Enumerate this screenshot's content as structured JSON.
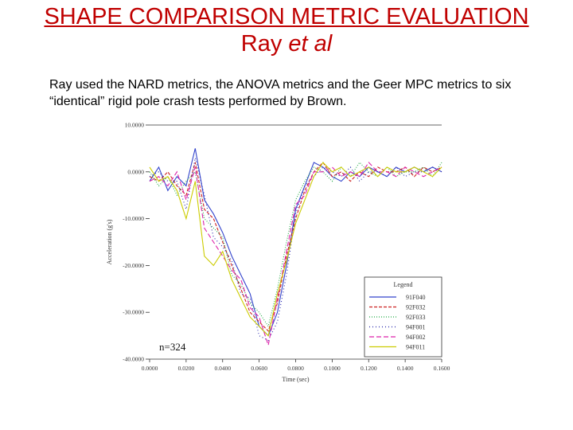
{
  "slide": {
    "title": "SHAPE COMPARISON METRIC EVALUATION",
    "subtitle_prefix": "Ray ",
    "subtitle_italic": "et al",
    "description": "Ray used the NARD metrics, the ANOVA metrics and the Geer MPC metrics to six “identical” rigid pole crash tests performed by Brown."
  },
  "chart_data": {
    "type": "line",
    "title": "",
    "xlabel": "Time (sec)",
    "ylabel": "Acceleration (g's)",
    "xlim": [
      0,
      0.16
    ],
    "ylim": [
      -40,
      10
    ],
    "x_ticks": [
      "0.0000",
      "0.0200",
      "0.0400",
      "0.0600",
      "0.0800",
      "0.1000",
      "0.1200",
      "0.1400",
      "0.1600"
    ],
    "y_ticks": [
      "10.0000",
      "0.0000",
      "-10.0000",
      "-20.0000",
      "-30.0000",
      "-40.0000"
    ],
    "legend_title": "Legend",
    "legend_position": "bottom-right",
    "annotation": "n=324",
    "grid": false,
    "x": [
      0.0,
      0.005,
      0.01,
      0.015,
      0.02,
      0.025,
      0.03,
      0.035,
      0.04,
      0.045,
      0.05,
      0.055,
      0.06,
      0.065,
      0.07,
      0.075,
      0.08,
      0.085,
      0.09,
      0.095,
      0.1,
      0.105,
      0.11,
      0.115,
      0.12,
      0.125,
      0.13,
      0.135,
      0.14,
      0.145,
      0.15,
      0.155,
      0.16
    ],
    "series": [
      {
        "name": "91F040",
        "color": "#3344cc",
        "dash": "",
        "values": [
          -2,
          1,
          -4,
          -1,
          -3,
          5,
          -6,
          -9,
          -13,
          -18,
          -22,
          -26,
          -33,
          -35,
          -30,
          -20,
          -8,
          -3,
          2,
          1,
          -1,
          -2,
          0,
          -1,
          1,
          0,
          -1,
          1,
          0,
          1,
          0,
          1,
          0
        ]
      },
      {
        "name": "92F032",
        "color": "#cc2222",
        "dash": "4,2",
        "values": [
          -1,
          -2,
          0,
          -3,
          -5,
          2,
          -8,
          -10,
          -15,
          -20,
          -25,
          -30,
          -32,
          -34,
          -28,
          -18,
          -10,
          -4,
          0,
          2,
          -1,
          0,
          -2,
          0,
          -1,
          1,
          0,
          0,
          1,
          -1,
          1,
          0,
          1
        ]
      },
      {
        "name": "92F033",
        "color": "#22aa44",
        "dash": "1,2",
        "values": [
          0,
          -3,
          -1,
          -5,
          -2,
          0,
          -10,
          -12,
          -14,
          -22,
          -24,
          -28,
          -30,
          -33,
          -25,
          -15,
          -6,
          -2,
          1,
          0,
          -2,
          1,
          -1,
          2,
          0,
          -1,
          1,
          -1,
          0,
          0,
          1,
          -1,
          2
        ]
      },
      {
        "name": "94F001",
        "color": "#2222aa",
        "dash": "1,3",
        "values": [
          -1,
          0,
          -2,
          -2,
          -8,
          3,
          -5,
          -14,
          -16,
          -19,
          -26,
          -27,
          -35,
          -36,
          -32,
          -22,
          -9,
          -3,
          -1,
          1,
          0,
          -1,
          1,
          -2,
          0,
          0,
          -1,
          1,
          -1,
          0,
          0,
          1,
          0
        ]
      },
      {
        "name": "94F002",
        "color": "#dd22aa",
        "dash": "6,3",
        "values": [
          -2,
          -1,
          -3,
          0,
          -6,
          1,
          -12,
          -15,
          -18,
          -21,
          -23,
          -29,
          -31,
          -37,
          -27,
          -17,
          -7,
          -5,
          0,
          0,
          1,
          -1,
          0,
          -1,
          2,
          0,
          0,
          -1,
          1,
          0,
          -1,
          0,
          1
        ]
      },
      {
        "name": "94F011",
        "color": "#cccc00",
        "dash": "",
        "values": [
          1,
          -2,
          -1,
          -4,
          -10,
          -2,
          -18,
          -20,
          -17,
          -23,
          -27,
          -31,
          -33,
          -35,
          -26,
          -19,
          -11,
          -6,
          -1,
          2,
          0,
          1,
          -1,
          0,
          1,
          -1,
          1,
          0,
          0,
          1,
          0,
          -1,
          1
        ]
      }
    ]
  }
}
